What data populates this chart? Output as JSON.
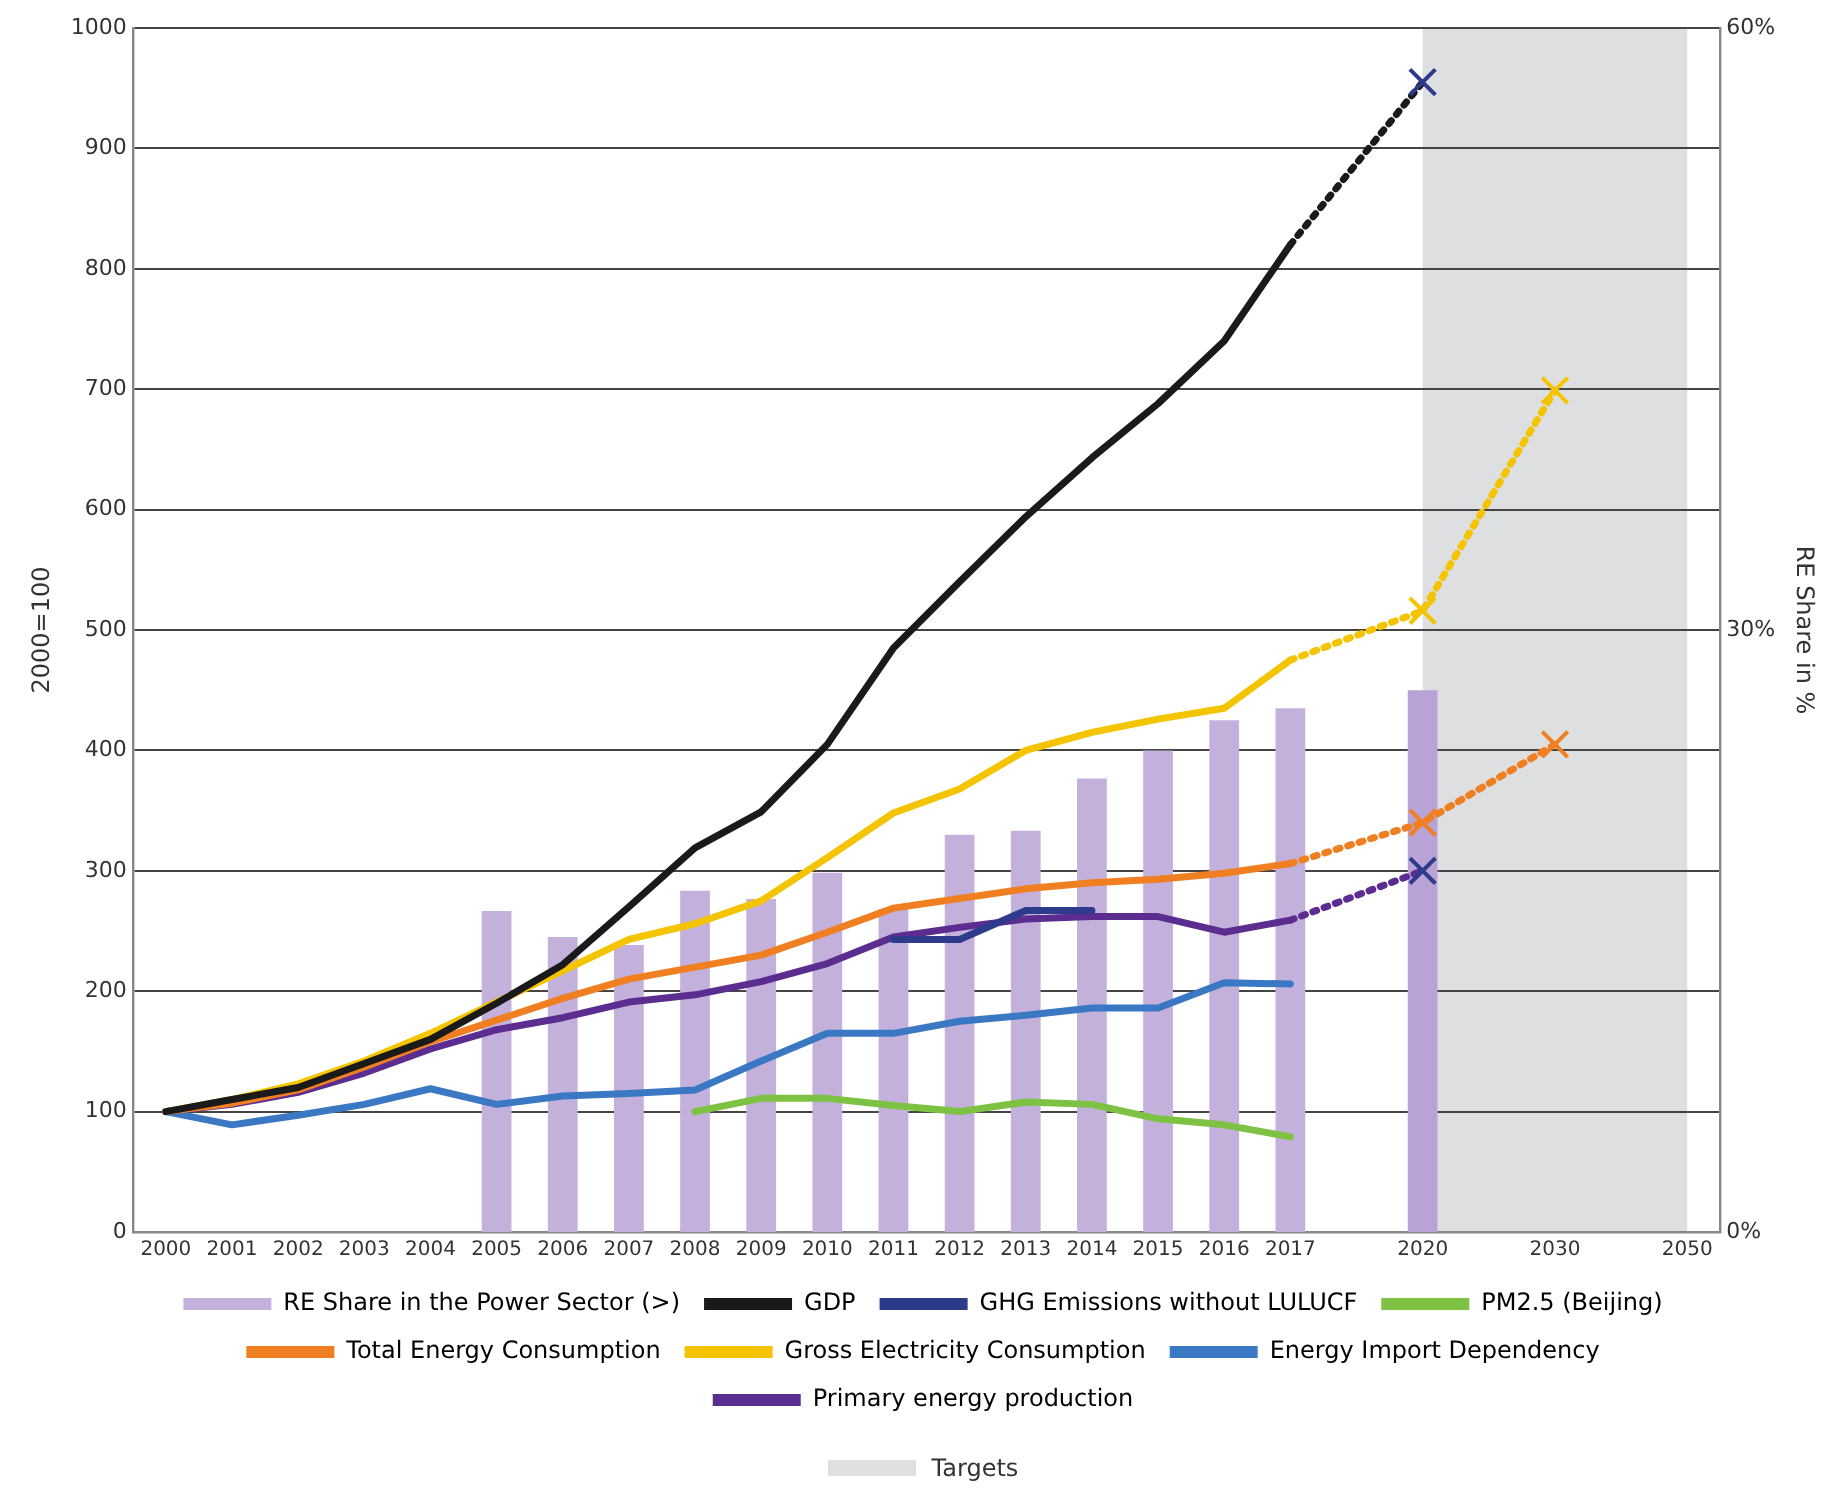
{
  "chart_data": {
    "type": "line",
    "ylabel": "2000=100",
    "y2label": "RE Share in %",
    "categories": [
      "2000",
      "2001",
      "2002",
      "2003",
      "2004",
      "2005",
      "2006",
      "2007",
      "2008",
      "2009",
      "2010",
      "2011",
      "2012",
      "2013",
      "2014",
      "2015",
      "2016",
      "2017",
      null,
      "2020",
      null,
      "2030",
      null,
      "2050"
    ],
    "ylim": [
      0,
      1000
    ],
    "yticks": [
      0,
      100,
      200,
      300,
      400,
      500,
      600,
      700,
      800,
      900,
      1000
    ],
    "y2lim": [
      0,
      60
    ],
    "y2ticks": [
      {
        "value": 0,
        "label": "0%"
      },
      {
        "value": 30,
        "label": "30%"
      },
      {
        "value": 60,
        "label": "60%"
      }
    ],
    "grid": "y",
    "legend": "bottom",
    "marker": "none",
    "line_style": "solid",
    "bands": [
      {
        "axis": "x",
        "from": "2020",
        "to": "2050",
        "label": "Targets",
        "color": "#dedfe1"
      }
    ],
    "series": [
      {
        "name": "RE Share in the Power Sector (>)",
        "type": "bar",
        "axis": "y2",
        "color": "#c3b1db",
        "values": [
          null,
          null,
          null,
          null,
          null,
          16,
          14.7,
          14.3,
          17,
          16.6,
          17.9,
          16.1,
          19.8,
          20,
          22.6,
          24,
          25.5,
          26.1,
          null,
          27,
          null,
          null,
          null,
          null
        ],
        "colors": [
          null,
          null,
          null,
          null,
          null,
          null,
          null,
          null,
          null,
          null,
          null,
          null,
          null,
          null,
          null,
          null,
          null,
          null,
          null,
          "#b8a2d6",
          null,
          null,
          null,
          null
        ]
      },
      {
        "name": "GDP",
        "color": "#1a1a1a",
        "values": [
          100,
          110,
          120,
          140,
          160,
          190,
          222,
          270,
          319,
          349,
          405,
          485,
          540,
          594,
          643,
          688,
          740,
          820,
          null,
          null,
          null,
          null,
          null,
          null
        ]
      },
      {
        "name": "GHG Emissions without LULUCF",
        "color": "#2e3a8c",
        "values": [
          null,
          null,
          null,
          null,
          null,
          null,
          null,
          null,
          null,
          null,
          null,
          243,
          243,
          267,
          267,
          null,
          null,
          null,
          null,
          null,
          null,
          null,
          null,
          null
        ]
      },
      {
        "name": "PM2.5 (Beijing)",
        "color": "#7dc242",
        "values": [
          null,
          null,
          null,
          null,
          null,
          null,
          null,
          null,
          100,
          111,
          111,
          105,
          100,
          108,
          106,
          94,
          89,
          79,
          null,
          null,
          null,
          null,
          null,
          null
        ]
      },
      {
        "name": "Total Energy Consumption",
        "color": "#f07f22",
        "values": [
          100,
          107,
          118,
          137,
          158,
          176,
          194,
          210,
          220,
          230,
          249,
          269,
          277,
          285,
          290,
          293,
          298,
          306,
          null,
          null,
          null,
          null,
          null,
          null
        ]
      },
      {
        "name": "Gross Electricity Consumption",
        "color": "#f5c400",
        "values": [
          100,
          110,
          123,
          142,
          165,
          191,
          217,
          243,
          256,
          275,
          311,
          348,
          368,
          400,
          415,
          426,
          435,
          475,
          null,
          null,
          null,
          null,
          null,
          null
        ]
      },
      {
        "name": "Energy Import Dependency",
        "color": "#3a78c4",
        "values": [
          100,
          89,
          97,
          106,
          119,
          106,
          113,
          115,
          118,
          142,
          165,
          165,
          175,
          180,
          186,
          186,
          207,
          206,
          null,
          null,
          null,
          null,
          null,
          null
        ]
      },
      {
        "name": "Primary energy production",
        "color": "#5c2d91",
        "values": [
          100,
          106,
          116,
          132,
          152,
          168,
          178,
          191,
          197,
          208,
          223,
          245,
          253,
          260,
          262,
          262,
          249,
          259,
          null,
          null,
          null,
          null,
          null,
          null
        ]
      },
      {
        "type": "line",
        "line_style": "dotted",
        "color": "#1a1a1a",
        "values": [
          null,
          null,
          null,
          null,
          null,
          null,
          null,
          null,
          null,
          null,
          null,
          null,
          null,
          null,
          null,
          null,
          null,
          820,
          null,
          955,
          null,
          null,
          null,
          null
        ]
      },
      {
        "type": "line",
        "line_style": "dotted",
        "color": "#f5c400",
        "values": [
          null,
          null,
          null,
          null,
          null,
          null,
          null,
          null,
          null,
          null,
          null,
          null,
          null,
          null,
          null,
          null,
          null,
          475,
          null,
          516,
          null,
          699,
          null,
          null
        ]
      },
      {
        "type": "line",
        "line_style": "dotted",
        "color": "#f07f22",
        "values": [
          null,
          null,
          null,
          null,
          null,
          null,
          null,
          null,
          null,
          null,
          null,
          null,
          null,
          null,
          null,
          null,
          null,
          306,
          null,
          340,
          null,
          405,
          null,
          null
        ]
      },
      {
        "type": "line",
        "line_style": "dotted",
        "color": "#5c2d91",
        "values": [
          null,
          null,
          null,
          null,
          null,
          null,
          null,
          null,
          null,
          null,
          null,
          null,
          null,
          null,
          null,
          null,
          null,
          259,
          null,
          300,
          null,
          null,
          null,
          null
        ]
      },
      {
        "type": "scatter",
        "marker": "cross",
        "color": "#2e3a8c",
        "values": [
          null,
          null,
          null,
          null,
          null,
          null,
          null,
          null,
          null,
          null,
          null,
          null,
          null,
          null,
          null,
          null,
          null,
          null,
          null,
          955,
          null,
          null,
          null,
          null
        ]
      },
      {
        "type": "scatter",
        "marker": "cross",
        "color": "#2e3a8c",
        "values": [
          null,
          null,
          null,
          null,
          null,
          null,
          null,
          null,
          null,
          null,
          null,
          null,
          null,
          null,
          null,
          null,
          null,
          null,
          null,
          300,
          null,
          null,
          null,
          null
        ]
      },
      {
        "type": "scatter",
        "marker": "cross",
        "color": "#f5c400",
        "values": [
          null,
          null,
          null,
          null,
          null,
          null,
          null,
          null,
          null,
          null,
          null,
          null,
          null,
          null,
          null,
          null,
          null,
          null,
          null,
          516,
          null,
          699,
          null,
          null
        ]
      },
      {
        "type": "scatter",
        "marker": "cross",
        "color": "#f07f22",
        "values": [
          null,
          null,
          null,
          null,
          null,
          null,
          null,
          null,
          null,
          null,
          null,
          null,
          null,
          null,
          null,
          null,
          null,
          null,
          null,
          340,
          null,
          405,
          null,
          null
        ]
      }
    ]
  }
}
